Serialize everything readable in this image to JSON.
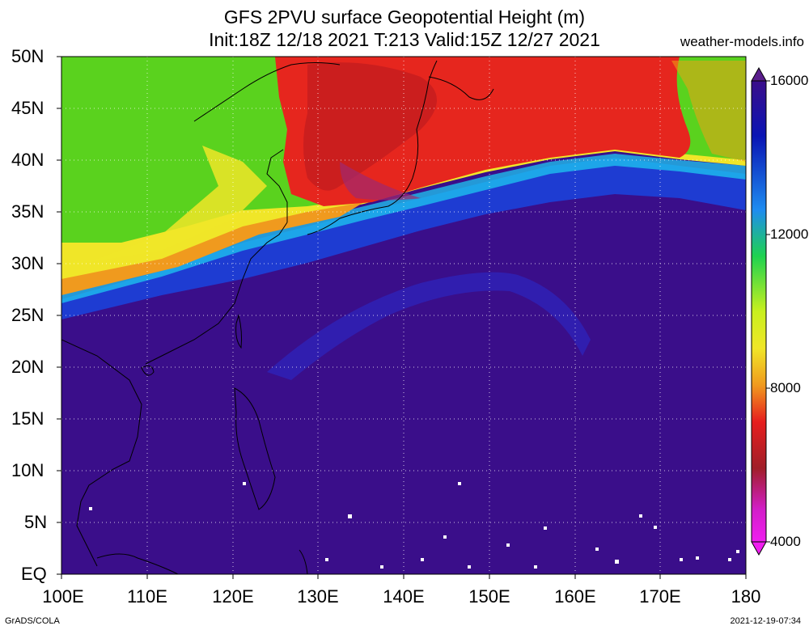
{
  "title_line1": "GFS 2PVU surface Geopotential Height (m)",
  "title_line2": "Init:18Z 12/18 2021 T:213 Valid:15Z 12/27 2021",
  "credit": "weather-models.info",
  "footer_left": "GrADS/COLA",
  "footer_right": "2021-12-19-07:34",
  "lat_labels": [
    "50N",
    "45N",
    "40N",
    "35N",
    "30N",
    "25N",
    "20N",
    "15N",
    "10N",
    "5N",
    "EQ"
  ],
  "lon_labels": [
    "100E",
    "110E",
    "120E",
    "130E",
    "140E",
    "150E",
    "160E",
    "170E",
    "180"
  ],
  "colorbar": {
    "labels": [
      "16000",
      "12000",
      "8000",
      "4000"
    ],
    "colors": [
      "#5a1e8c",
      "#0a14b4",
      "#1432dc",
      "#1e5af0",
      "#1e8cf0",
      "#1ec8f0",
      "#1ee6b4",
      "#1ed250",
      "#50e61e",
      "#a0f01e",
      "#d2f01e",
      "#f0f01e",
      "#f0d21e",
      "#f0a014",
      "#f07814",
      "#f05014",
      "#e61e1e",
      "#c81e1e",
      "#a01e28",
      "#b4288c",
      "#d21ec8",
      "#f01ef0"
    ]
  },
  "legend_colors": {
    "purple_background": "#3a0e8a",
    "blue": "#1e3cd2",
    "red": "#e6261e",
    "green": "#5ad21e",
    "yellow": "#f0e628",
    "orange": "#f09a1e"
  }
}
